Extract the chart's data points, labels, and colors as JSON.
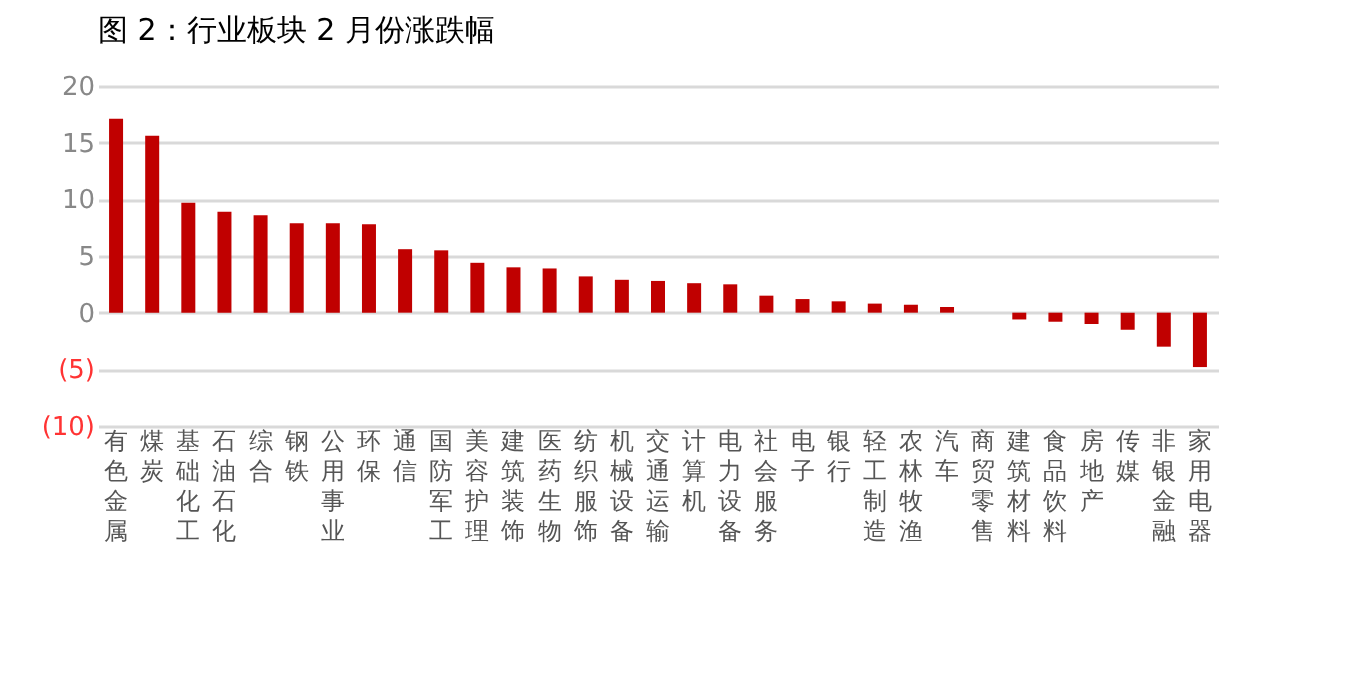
{
  "chart_data": {
    "type": "bar",
    "title": "图 2：行业板块 2 月份涨跌幅",
    "categories": [
      "有色金属",
      "煤炭",
      "基础化工",
      "石油石化",
      "综合",
      "钢铁",
      "公用事业",
      "环保",
      "通信",
      "国防军工",
      "美容护理",
      "建筑装饰",
      "医药生物",
      "纺织服饰",
      "机械设备",
      "交通运输",
      "计算机",
      "电力设备",
      "社会服务",
      "电子",
      "银行",
      "轻工制造",
      "农林牧渔",
      "汽车",
      "商贸零售",
      "建筑材料",
      "食品饮料",
      "房地产",
      "传媒",
      "非银金融",
      "家用电器"
    ],
    "values": [
      17.1,
      15.6,
      9.7,
      8.9,
      8.6,
      7.9,
      7.9,
      7.8,
      5.6,
      5.5,
      4.4,
      4.0,
      3.9,
      3.2,
      2.9,
      2.8,
      2.6,
      2.5,
      1.5,
      1.2,
      1.0,
      0.8,
      0.7,
      0.5,
      0,
      -0.6,
      -0.8,
      -1.0,
      -1.5,
      -3.0,
      -4.8
    ],
    "color": "#c00000",
    "ylim": [
      -10,
      20
    ],
    "yticks": [
      {
        "value": -10,
        "label": "(10)"
      },
      {
        "value": -5,
        "label": "(5)"
      },
      0,
      5,
      10,
      15,
      20
    ],
    "grid": "y"
  }
}
